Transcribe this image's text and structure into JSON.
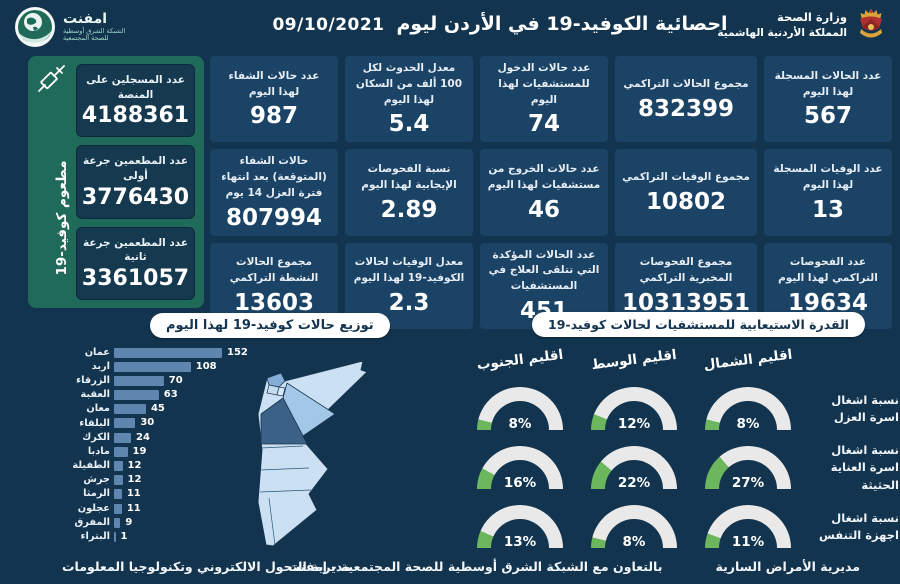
{
  "header": {
    "title": "احصائية الكوفيد-19 في الأردن ليوم",
    "date": "09/10/2021",
    "logo_text": "امفنت",
    "logo_sub1": "الشبكة الشرق أوسطية",
    "logo_sub2": "للصحة المجتمعية",
    "ministry_line1": "وزارة الصحة",
    "ministry_line2": "المملكة الأردنية الهاشمية"
  },
  "icons": {
    "logo": "emphnet-globe-icon",
    "emblem": "jordan-coat-of-arms-icon",
    "syringe": "syringe-icon"
  },
  "colors": {
    "background": "#12344E",
    "card": "#1B4365",
    "panel_green": "#1F6A58",
    "accent_green": "#6CB65D",
    "bar_blue": "#5E86AE",
    "gauge_track": "#E9E9E9"
  },
  "vaccine_panel": {
    "side_label": "مطعوم كوفيد-19",
    "cards": [
      {
        "label": "عدد المسجلين على المنصة",
        "value": "4188361"
      },
      {
        "label": "عدد المطعمين جرعة أولى",
        "value": "3776430"
      },
      {
        "label": "عدد المطعمين جرعة ثانية",
        "value": "3361057"
      }
    ]
  },
  "stats": [
    {
      "label": "عدد الحالات المسجلة لهذا اليوم",
      "value": "567"
    },
    {
      "label": "مجموع الحالات التراكمي",
      "value": "832399"
    },
    {
      "label": "عدد حالات الدخول للمستشفيات لهذا اليوم",
      "value": "74"
    },
    {
      "label": "معدل الحدوث لكل 100 ألف من السكان لهذا اليوم",
      "value": "5.4"
    },
    {
      "label": "عدد حالات الشفاء لهذا اليوم",
      "value": "987"
    },
    {
      "label": "عدد الوفيات المسجلة لهذا اليوم",
      "value": "13"
    },
    {
      "label": "مجموع الوفيات التراكمي",
      "value": "10802"
    },
    {
      "label": "عدد حالات الخروج من مستشفيات لهذا اليوم",
      "value": "46"
    },
    {
      "label": "نسبة الفحوصات الإيجابية لهذا اليوم",
      "value": "2.89"
    },
    {
      "label": "حالات الشفاء (المتوقعة) بعد انتهاء فترة العزل 14 يوم",
      "value": "807994"
    },
    {
      "label": "عدد الفحوصات التراكمي لهذا اليوم",
      "value": "19634"
    },
    {
      "label": "مجموع الفحوصات المخبرية التراكمي",
      "value": "10313951"
    },
    {
      "label": "عدد الحالات المؤكدة التي تتلقى العلاج في المستشفيات",
      "value": "451"
    },
    {
      "label": "معدل الوفيات لحالات الكوفيد-19 لهذا اليوم",
      "value": "2.3"
    },
    {
      "label": "مجموع الحالات النشطة التراكمي",
      "value": "13603"
    }
  ],
  "chart_data": [
    {
      "type": "bar",
      "title": "توزيع حالات كوفيد-19 لهذا اليوم",
      "orientation": "horizontal",
      "categories": [
        "عمان",
        "اربد",
        "الزرقاء",
        "العقبة",
        "معان",
        "البلقاء",
        "الكرك",
        "مادبا",
        "الطفيلة",
        "جرش",
        "الرمثا",
        "عجلون",
        "المفرق",
        "البتراء"
      ],
      "values": [
        152,
        108,
        70,
        63,
        45,
        30,
        24,
        19,
        12,
        12,
        11,
        11,
        9,
        1
      ],
      "xlim": [
        0,
        160
      ],
      "bar_color": "#5E86AE",
      "legend": "none"
    },
    {
      "type": "gauge",
      "title": "القدرة الاستيعابية للمستشفيات لحالات كوفيد-19",
      "columns": [
        "اقليم الشمال",
        "اقليم الوسط",
        "اقليم الجنوب"
      ],
      "rows": [
        "نسبة اشغال اسرة العزل",
        "نسبة اشغال اسرة العناية الحثيثة",
        "نسبة اشغال اجهزة التنفس"
      ],
      "values": [
        [
          8,
          12,
          8
        ],
        [
          27,
          22,
          16
        ],
        [
          11,
          8,
          13
        ]
      ],
      "unit": "%",
      "range": [
        0,
        100
      ],
      "fill_color": "#6CB65D",
      "track_color": "#E9E9E9"
    }
  ],
  "footer": {
    "right": "مديرية الأمراض السارية",
    "center": "بالتعاون مع الشبكة الشرق أوسطية للصحة المجتمعية - إمفنت",
    "left": "مديرية التحول الالكتروني وتكنولوجيا المعلومات"
  }
}
